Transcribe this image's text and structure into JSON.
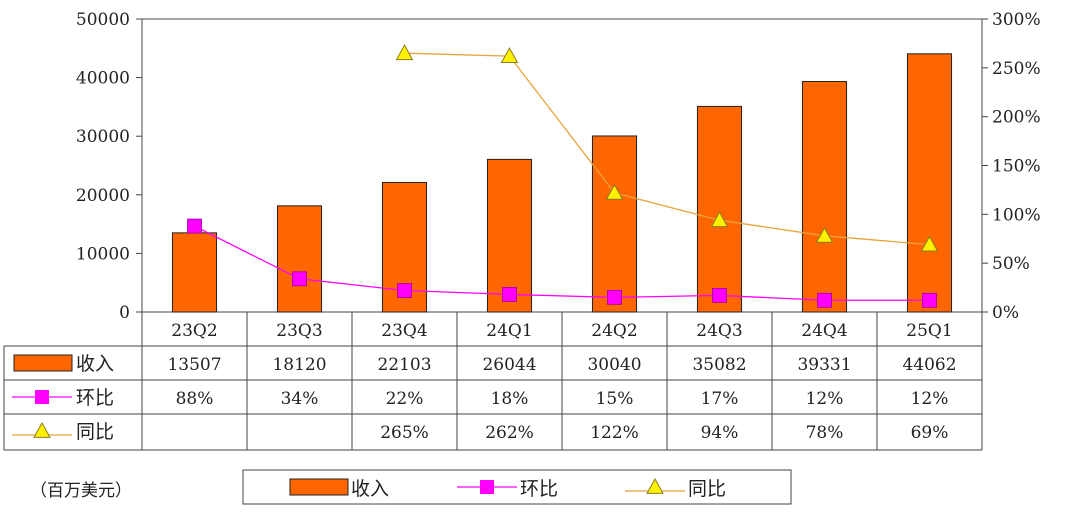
{
  "chart_data": {
    "type": "bar",
    "categories": [
      "23Q2",
      "23Q3",
      "23Q4",
      "24Q1",
      "24Q2",
      "24Q3",
      "24Q4",
      "25Q1"
    ],
    "series": [
      {
        "name": "收入",
        "type": "bar",
        "axis": "left",
        "values": [
          13507,
          18120,
          22103,
          26044,
          30040,
          35082,
          39331,
          44062
        ]
      },
      {
        "name": "环比",
        "type": "line",
        "axis": "right",
        "values": [
          88,
          34,
          22,
          18,
          15,
          17,
          12,
          12
        ]
      },
      {
        "name": "同比",
        "type": "line",
        "axis": "right",
        "values": [
          null,
          null,
          265,
          262,
          122,
          94,
          78,
          69
        ]
      }
    ],
    "table_rows": [
      {
        "label": "收入",
        "cells": [
          "13507",
          "18120",
          "22103",
          "26044",
          "30040",
          "35082",
          "39331",
          "44062"
        ]
      },
      {
        "label": "环比",
        "cells": [
          "88%",
          "34%",
          "22%",
          "18%",
          "15%",
          "17%",
          "12%",
          "12%"
        ]
      },
      {
        "label": "同比",
        "cells": [
          "",
          "",
          "265%",
          "262%",
          "122%",
          "94%",
          "78%",
          "69%"
        ]
      }
    ],
    "y_left": {
      "min": 0,
      "max": 50000,
      "ticks": [
        "0",
        "10000",
        "20000",
        "30000",
        "40000",
        "50000"
      ]
    },
    "y_right": {
      "min": 0,
      "max": 300,
      "ticks": [
        "0%",
        "50%",
        "100%",
        "150%",
        "200%",
        "250%",
        "300%"
      ]
    },
    "unit_label": "（百万美元）",
    "legend": [
      "收入",
      "环比",
      "同比"
    ],
    "legend_position": "bottom",
    "grid": false,
    "colors": {
      "bar": "#FF6600",
      "bar_edge": "#222222",
      "mom": "#FF00FF",
      "yoy_line": "#E8A33C",
      "yoy_marker": "#FFF200"
    }
  }
}
